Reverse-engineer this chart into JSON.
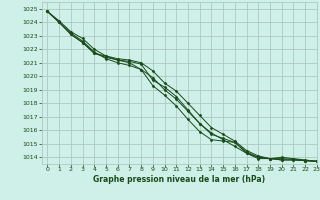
{
  "title": "Graphe pression niveau de la mer (hPa)",
  "bg_color": "#cff0e8",
  "grid_color": "#adc8c0",
  "line_color": "#1a4a1a",
  "marker_color": "#1a4a1a",
  "xlim": [
    -0.5,
    23
  ],
  "ylim": [
    1013.5,
    1025.5
  ],
  "yticks": [
    1014,
    1015,
    1016,
    1017,
    1018,
    1019,
    1020,
    1021,
    1022,
    1023,
    1024,
    1025
  ],
  "xticks": [
    0,
    1,
    2,
    3,
    4,
    5,
    6,
    7,
    8,
    9,
    10,
    11,
    12,
    13,
    14,
    15,
    16,
    17,
    18,
    19,
    20,
    21,
    22,
    23
  ],
  "series": [
    [
      1024.8,
      1024.1,
      1023.3,
      1022.8,
      1022.0,
      1021.5,
      1021.2,
      1021.1,
      1020.9,
      1019.7,
      1019.2,
      1018.5,
      1017.5,
      1016.5,
      1015.8,
      1015.3,
      1014.8,
      1014.3,
      1013.9,
      1013.9,
      1013.8,
      1013.8,
      1013.75,
      1013.7
    ],
    [
      1024.8,
      1024.0,
      1023.2,
      1022.6,
      1021.8,
      1021.3,
      1021.0,
      1020.8,
      1020.5,
      1019.3,
      1018.6,
      1017.8,
      1016.8,
      1015.9,
      1015.3,
      1015.2,
      1015.1,
      1014.3,
      1014.0,
      1013.9,
      1014.0,
      1013.9,
      1013.8,
      1013.7
    ],
    [
      1024.8,
      1024.0,
      1023.1,
      1022.5,
      1021.7,
      1021.5,
      1021.3,
      1021.2,
      1021.0,
      1020.4,
      1019.5,
      1018.9,
      1018.0,
      1017.1,
      1016.2,
      1015.7,
      1015.2,
      1014.5,
      1014.1,
      1013.9,
      1013.8,
      1013.8,
      1013.75,
      1013.7
    ],
    [
      1024.8,
      1024.0,
      1023.1,
      1022.5,
      1021.7,
      1021.4,
      1021.2,
      1021.0,
      1020.5,
      1019.9,
      1019.0,
      1018.3,
      1017.4,
      1016.5,
      1015.7,
      1015.4,
      1015.1,
      1014.4,
      1014.0,
      1013.9,
      1013.9,
      1013.85,
      1013.75,
      1013.7
    ]
  ]
}
